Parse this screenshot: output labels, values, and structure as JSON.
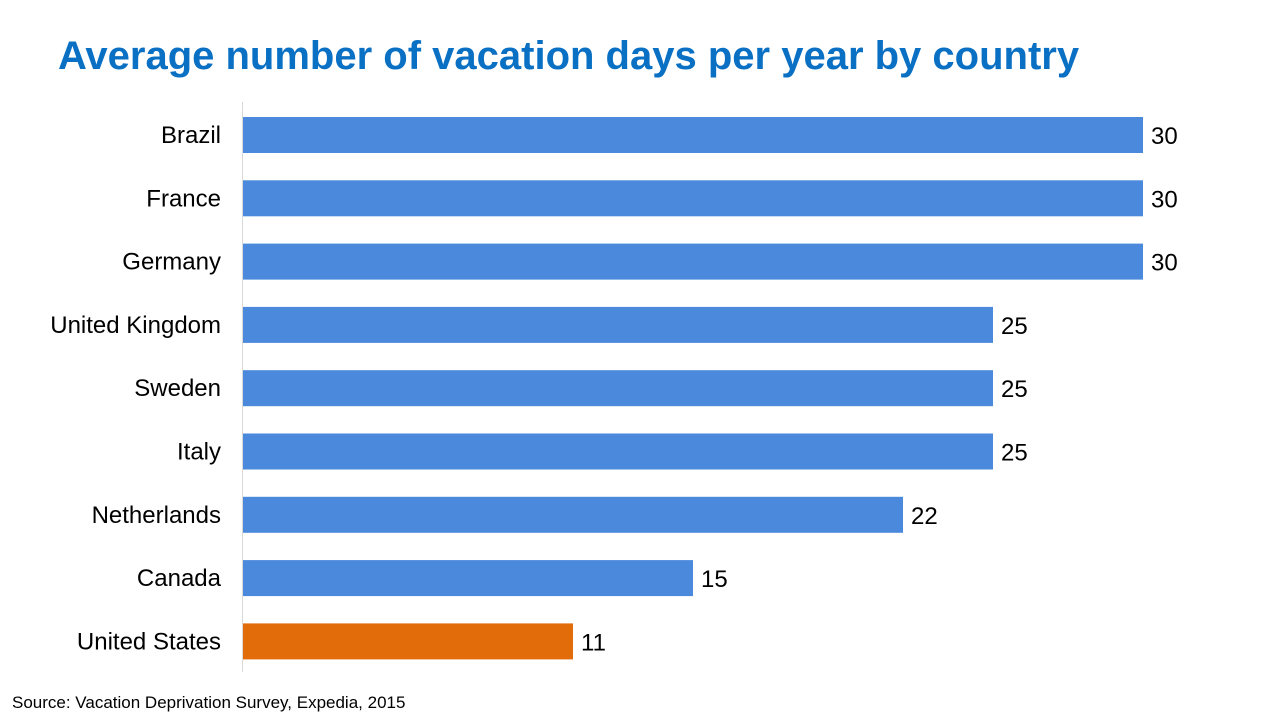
{
  "title": "Average number of vacation days per year by country",
  "source": "Source: Vacation Deprivation Survey, Expedia, 2015",
  "chart_data": {
    "type": "bar",
    "orientation": "horizontal",
    "title": "Average number of vacation days per year by country",
    "categories": [
      "Brazil",
      "France",
      "Germany",
      "United Kingdom",
      "Sweden",
      "Italy",
      "Netherlands",
      "Canada",
      "United States"
    ],
    "values": [
      30,
      30,
      30,
      25,
      25,
      25,
      22,
      15,
      11
    ],
    "xlim": [
      0,
      30
    ],
    "grid": false,
    "data_labels": true,
    "colors": {
      "default": "#4a89dc",
      "highlight": "#e36c0a"
    },
    "highlight_category": "United States"
  }
}
